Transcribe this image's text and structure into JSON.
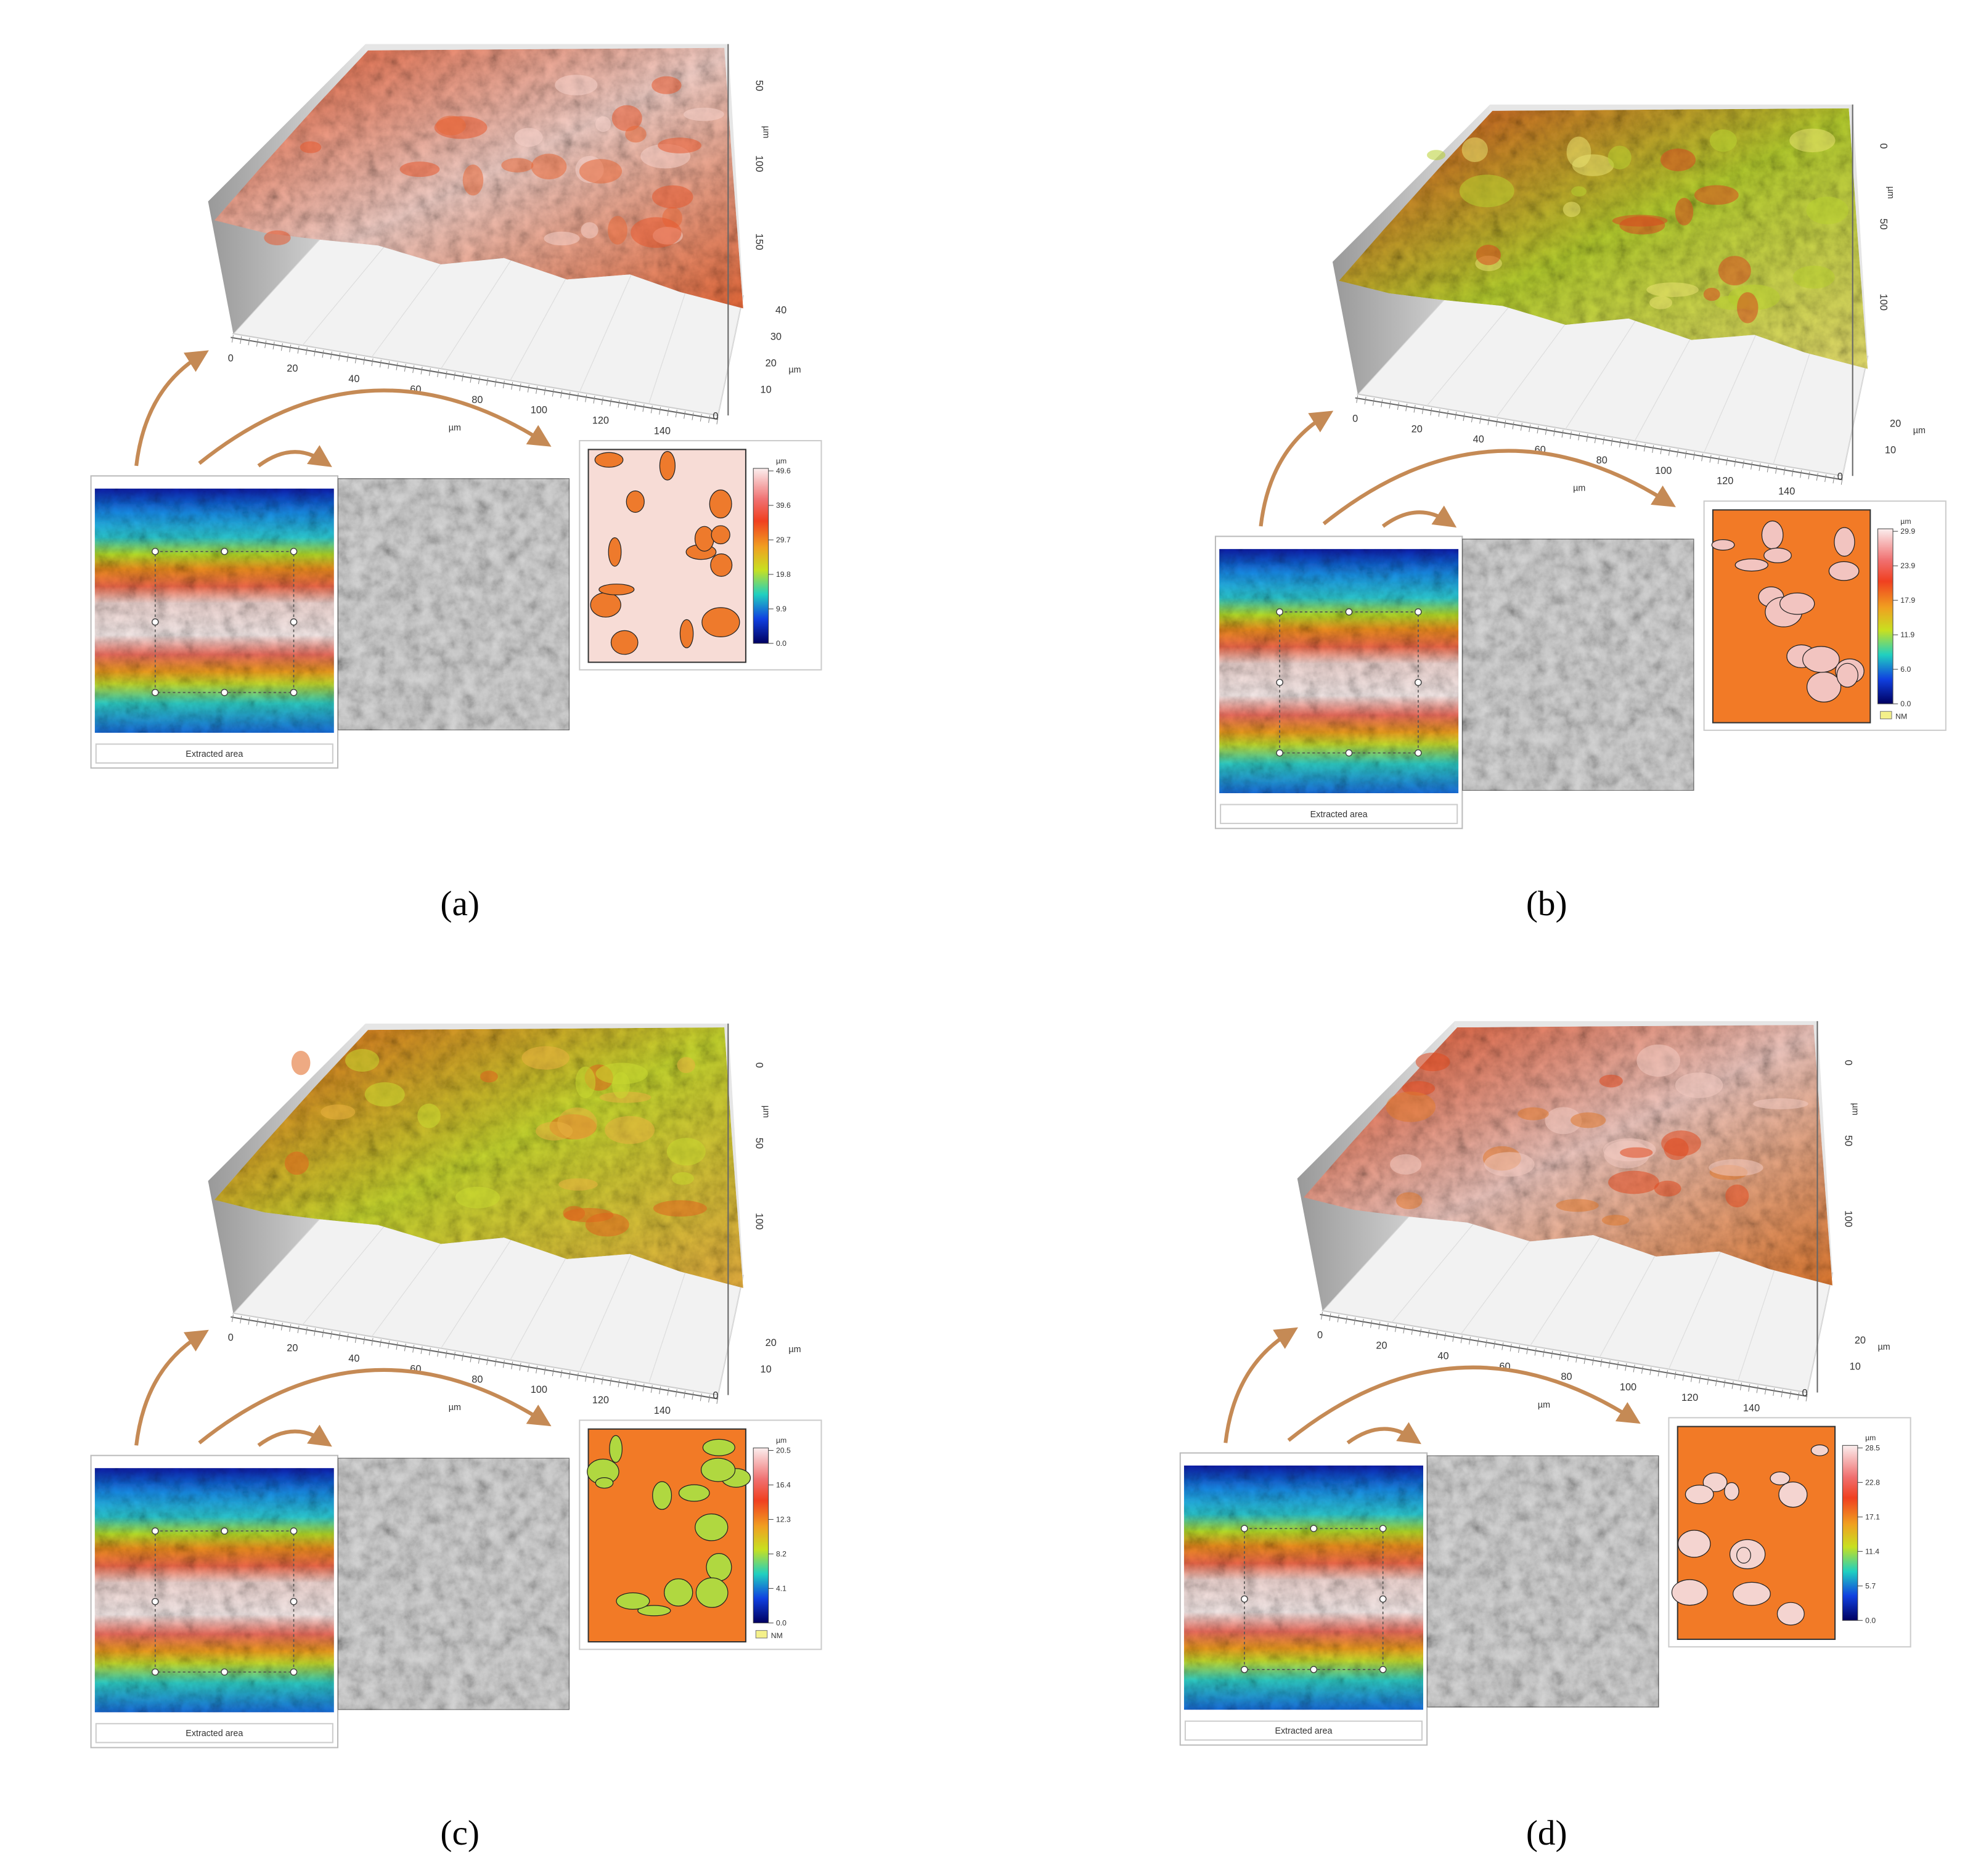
{
  "panels": [
    {
      "label": "(a)",
      "x_ticks": [
        "0",
        "20",
        "40",
        "60",
        "80",
        "100",
        "120",
        "140"
      ],
      "x_unit": "µm",
      "y_ticks": [
        "50",
        "100",
        "150"
      ],
      "y_unit": "µm",
      "z_ticks": [
        "40",
        "30",
        "20",
        "10",
        "0"
      ],
      "z_unit": "µm",
      "caption": "Extracted area",
      "colorbar": {
        "unit": "µm",
        "ticks": [
          "49.6",
          "39.6",
          "29.7",
          "19.8",
          "9.9",
          "0.0"
        ]
      }
    },
    {
      "label": "(b)",
      "x_ticks": [
        "0",
        "20",
        "40",
        "60",
        "80",
        "100",
        "120",
        "140"
      ],
      "x_unit": "µm",
      "y_ticks": [
        "0",
        "50",
        "100"
      ],
      "y_unit": "µm",
      "z_ticks": [
        "20",
        "10",
        "0"
      ],
      "z_unit": "µm",
      "caption": "Extracted area",
      "colorbar": {
        "unit": "µm",
        "ticks": [
          "29.9",
          "23.9",
          "17.9",
          "11.9",
          "6.0",
          "0.0"
        ],
        "nm": "NM"
      }
    },
    {
      "label": "(c)",
      "x_ticks": [
        "0",
        "20",
        "40",
        "60",
        "80",
        "100",
        "120",
        "140"
      ],
      "x_unit": "µm",
      "y_ticks": [
        "0",
        "50",
        "100"
      ],
      "y_unit": "µm",
      "z_ticks": [
        "20",
        "10",
        "0"
      ],
      "z_unit": "µm",
      "caption": "Extracted area",
      "colorbar": {
        "unit": "µm",
        "ticks": [
          "20.5",
          "16.4",
          "12.3",
          "8.2",
          "4.1",
          "0.0"
        ],
        "nm": "NM"
      }
    },
    {
      "label": "(d)",
      "x_ticks": [
        "0",
        "20",
        "40",
        "60",
        "80",
        "100",
        "120",
        "140"
      ],
      "x_unit": "µm",
      "y_ticks": [
        "0",
        "50",
        "100"
      ],
      "y_unit": "µm",
      "z_ticks": [
        "20",
        "10",
        "0"
      ],
      "z_unit": "µm",
      "caption": "Extracted area",
      "colorbar": {
        "unit": "µm",
        "ticks": [
          "28.5",
          "22.8",
          "17.1",
          "11.4",
          "5.7",
          "0.0"
        ]
      }
    }
  ]
}
